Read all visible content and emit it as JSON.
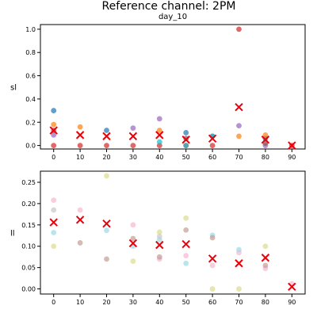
{
  "figure": {
    "title": "Reference channel: 2PM"
  },
  "chart_data": [
    {
      "type": "scatter",
      "title": "day_10",
      "ylabel": "sl",
      "x_ticks": [
        0,
        10,
        20,
        30,
        40,
        50,
        60,
        70,
        80,
        90
      ],
      "y_ticks": [
        0.0,
        0.2,
        0.4,
        0.6,
        0.8,
        1.0
      ],
      "y_tick_labels": [
        "0.0",
        "0.2",
        "0.4",
        "0.6",
        "0.8",
        "1.0"
      ],
      "ylim": [
        -0.03,
        1.04
      ],
      "grid": false,
      "series": [
        {
          "color": "#1f77b4",
          "x": [
            0,
            20,
            50,
            60,
            80
          ],
          "y": [
            0.3,
            0.13,
            0.11,
            0.08,
            0.06
          ]
        },
        {
          "color": "#ff7f0e",
          "x": [
            0,
            10,
            40,
            70,
            80
          ],
          "y": [
            0.18,
            0.16,
            0.13,
            0.08,
            0.09
          ]
        },
        {
          "color": "#9467bd",
          "x": [
            0,
            30,
            40,
            70,
            80
          ],
          "y": [
            0.09,
            0.15,
            0.23,
            0.17,
            0.0
          ]
        },
        {
          "color": "#d62728",
          "x": [
            0,
            10,
            20,
            30,
            40,
            50,
            60,
            70,
            90
          ],
          "y": [
            0.0,
            0.0,
            0.0,
            0.0,
            0.0,
            0.0,
            0.0,
            1.0,
            0.0
          ]
        },
        {
          "color": "#17becf",
          "x": [
            40,
            50,
            60
          ],
          "y": [
            0.03,
            0.0,
            0.08
          ]
        },
        {
          "color": "#8c564b",
          "x": [
            0,
            50,
            80
          ],
          "y": [
            0.13,
            0.06,
            0.02
          ]
        }
      ],
      "means": {
        "x": [
          0,
          10,
          20,
          30,
          40,
          50,
          60,
          70,
          80,
          90
        ],
        "y": [
          0.13,
          0.09,
          0.08,
          0.08,
          0.09,
          0.05,
          0.06,
          0.33,
          0.05,
          0.0
        ]
      }
    },
    {
      "type": "scatter",
      "title": "",
      "ylabel": "ll",
      "x_ticks": [
        0,
        10,
        20,
        30,
        40,
        50,
        60,
        70,
        80,
        90
      ],
      "y_ticks": [
        0.0,
        0.05,
        0.1,
        0.15,
        0.2,
        0.25
      ],
      "y_tick_labels": [
        "0.00",
        "0.05",
        "0.10",
        "0.15",
        "0.20",
        "0.25"
      ],
      "ylim": [
        -0.012,
        0.276
      ],
      "grid": false,
      "series": [
        {
          "color": "#f7b6d2",
          "x": [
            0,
            10,
            30,
            40,
            50,
            60,
            70,
            80,
            90
          ],
          "y": [
            0.208,
            0.185,
            0.15,
            0.07,
            0.078,
            0.055,
            0.085,
            0.048,
            0.012
          ]
        },
        {
          "color": "#dbdb8d",
          "x": [
            0,
            20,
            30,
            40,
            50,
            60,
            70,
            80
          ],
          "y": [
            0.1,
            0.265,
            0.065,
            0.133,
            0.166,
            0.0,
            0.0,
            0.1
          ]
        },
        {
          "color": "#9edae5",
          "x": [
            0,
            20,
            30,
            40,
            50,
            60,
            70
          ],
          "y": [
            0.132,
            0.137,
            0.1,
            0.115,
            0.06,
            0.126,
            0.092
          ]
        },
        {
          "color": "#c49c94",
          "x": [
            10,
            20,
            30,
            40,
            50,
            60,
            80
          ],
          "y": [
            0.108,
            0.07,
            0.118,
            0.075,
            0.138,
            0.12,
            0.055
          ]
        },
        {
          "color": "#c7c7c7",
          "x": [
            0,
            40
          ],
          "y": [
            0.185,
            0.123
          ]
        }
      ],
      "means": {
        "x": [
          0,
          10,
          20,
          30,
          40,
          50,
          60,
          70,
          80,
          90
        ],
        "y": [
          0.156,
          0.162,
          0.153,
          0.107,
          0.103,
          0.105,
          0.071,
          0.06,
          0.073,
          0.005
        ]
      }
    }
  ],
  "styles": {
    "mean_marker_color": "#e8000b",
    "axis_color": "#000000"
  }
}
